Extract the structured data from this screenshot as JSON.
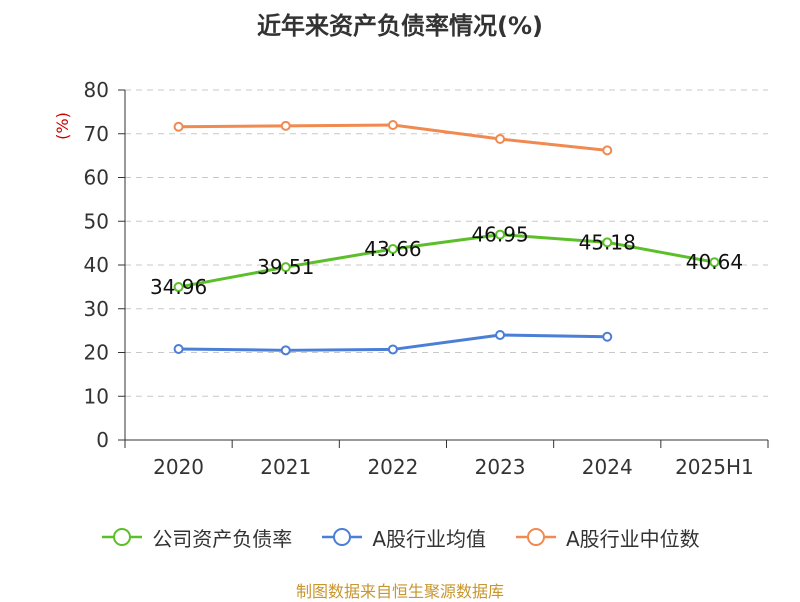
{
  "chart_data": {
    "type": "line",
    "title": "近年来资产负债率情况(%)",
    "ylabel": "(%)",
    "xlabel": "",
    "ylim": [
      0,
      80
    ],
    "yticks": [
      0,
      10,
      20,
      30,
      40,
      50,
      60,
      70,
      80
    ],
    "categories": [
      "2020",
      "2021",
      "2022",
      "2023",
      "2024",
      "2025H1"
    ],
    "grid": true,
    "legend_position": "bottom",
    "series": [
      {
        "name": "公司资产负债率",
        "color": "#5cbf2a",
        "values": [
          34.96,
          39.51,
          43.66,
          46.95,
          45.18,
          40.64
        ],
        "labels": [
          "34.96",
          "39.51",
          "43.66",
          "46.95",
          "45.18",
          "40.64"
        ],
        "show_labels": true
      },
      {
        "name": "A股行业均值",
        "color": "#4b7ed6",
        "values": [
          20.8,
          20.5,
          20.7,
          24.0,
          23.6,
          null
        ],
        "show_labels": false
      },
      {
        "name": "A股行业中位数",
        "color": "#f08a50",
        "values": [
          71.6,
          71.8,
          72.0,
          68.8,
          66.2,
          null
        ],
        "show_labels": false
      }
    ]
  },
  "source": "制图数据来自恒生聚源数据库"
}
